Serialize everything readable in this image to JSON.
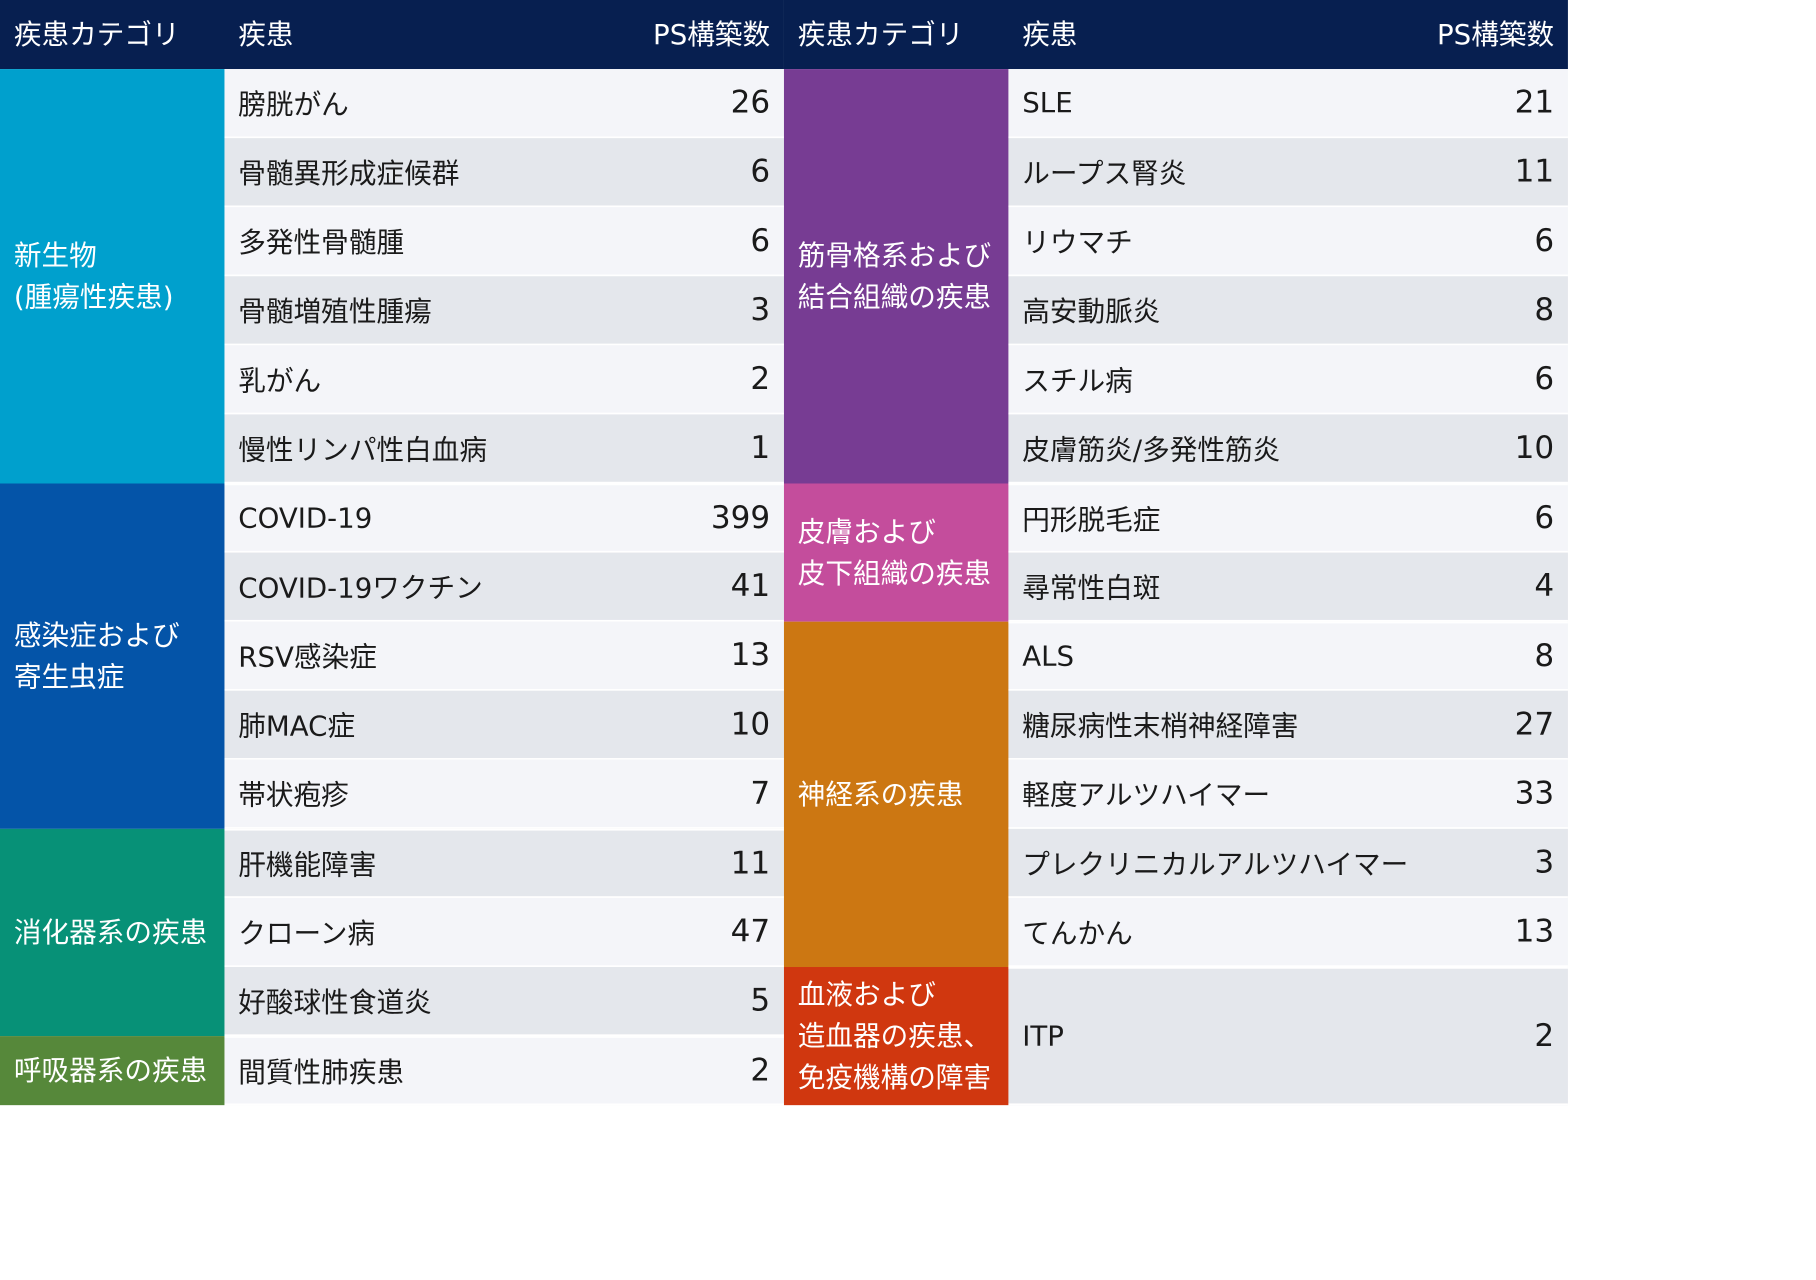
{
  "header": {
    "category": "疾患カテゴリ",
    "disease": "疾患",
    "ps_count": "PS構築数"
  },
  "colors": {
    "header_bg": "#071f50",
    "row_light": "#f4f5f9",
    "row_dark": "#e4e7ec",
    "neoplasms": "#00a0cd",
    "infectious": "#0454a8",
    "digestive": "#079177",
    "respiratory": "#56883a",
    "musculoskeletal": "#773c93",
    "skin": "#c44d9c",
    "nervous": "#cc7712",
    "blood": "#d0370f"
  },
  "left": {
    "categories": [
      {
        "label": "新生物\n(腫瘍性疾患)",
        "color": "#00a0cd",
        "rows": [
          0,
          6
        ]
      },
      {
        "label": "感染症および\n寄生虫症",
        "color": "#0454a8",
        "rows": [
          6,
          11
        ]
      },
      {
        "label": "消化器系の疾患",
        "color": "#079177",
        "rows": [
          11,
          14
        ]
      },
      {
        "label": "呼吸器系の疾患",
        "color": "#56883a",
        "rows": [
          14,
          15
        ]
      }
    ],
    "rows": [
      {
        "disease": "膀胱がん",
        "ps": "26"
      },
      {
        "disease": "骨髄異形成症候群",
        "ps": "6"
      },
      {
        "disease": "多発性骨髄腫",
        "ps": "6"
      },
      {
        "disease": "骨髄増殖性腫瘍",
        "ps": "3"
      },
      {
        "disease": "乳がん",
        "ps": "2"
      },
      {
        "disease": "慢性リンパ性白血病",
        "ps": "1"
      },
      {
        "disease": "COVID-19",
        "ps": "399"
      },
      {
        "disease": "COVID-19ワクチン",
        "ps": "41"
      },
      {
        "disease": "RSV感染症",
        "ps": "13"
      },
      {
        "disease": "肺MAC症",
        "ps": "10"
      },
      {
        "disease": "帯状疱疹",
        "ps": "7"
      },
      {
        "disease": "肝機能障害",
        "ps": "11"
      },
      {
        "disease": "クローン病",
        "ps": "47"
      },
      {
        "disease": "好酸球性食道炎",
        "ps": "5"
      },
      {
        "disease": "間質性肺疾患",
        "ps": "2"
      }
    ]
  },
  "right": {
    "categories": [
      {
        "label": "筋骨格系および\n結合組織の疾患",
        "color": "#773c93",
        "rows": [
          0,
          6
        ]
      },
      {
        "label": "皮膚および\n皮下組織の疾患",
        "color": "#c44d9c",
        "rows": [
          6,
          8
        ]
      },
      {
        "label": "神経系の疾患",
        "color": "#cc7712",
        "rows": [
          8,
          13
        ]
      },
      {
        "label": "血液および\n造血器の疾患、\n免疫機構の障害",
        "color": "#d0370f",
        "rows": [
          13,
          15
        ]
      }
    ],
    "rows": [
      {
        "disease": "SLE",
        "ps": "21"
      },
      {
        "disease": "ループス腎炎",
        "ps": "11"
      },
      {
        "disease": "リウマチ",
        "ps": "6"
      },
      {
        "disease": "高安動脈炎",
        "ps": "8"
      },
      {
        "disease": "スチル病",
        "ps": "6"
      },
      {
        "disease": "皮膚筋炎/多発性筋炎",
        "ps": "10"
      },
      {
        "disease": "円形脱毛症",
        "ps": "6"
      },
      {
        "disease": "尋常性白斑",
        "ps": "4"
      },
      {
        "disease": "ALS",
        "ps": "8"
      },
      {
        "disease": "糖尿病性末梢神経障害",
        "ps": "27"
      },
      {
        "disease": "軽度アルツハイマー",
        "ps": "33"
      },
      {
        "disease": "プレクリニカルアルツハイマー",
        "ps": "3"
      },
      {
        "disease": "てんかん",
        "ps": "13"
      },
      {
        "disease": "ITP",
        "ps": "2",
        "span": 2
      }
    ]
  }
}
